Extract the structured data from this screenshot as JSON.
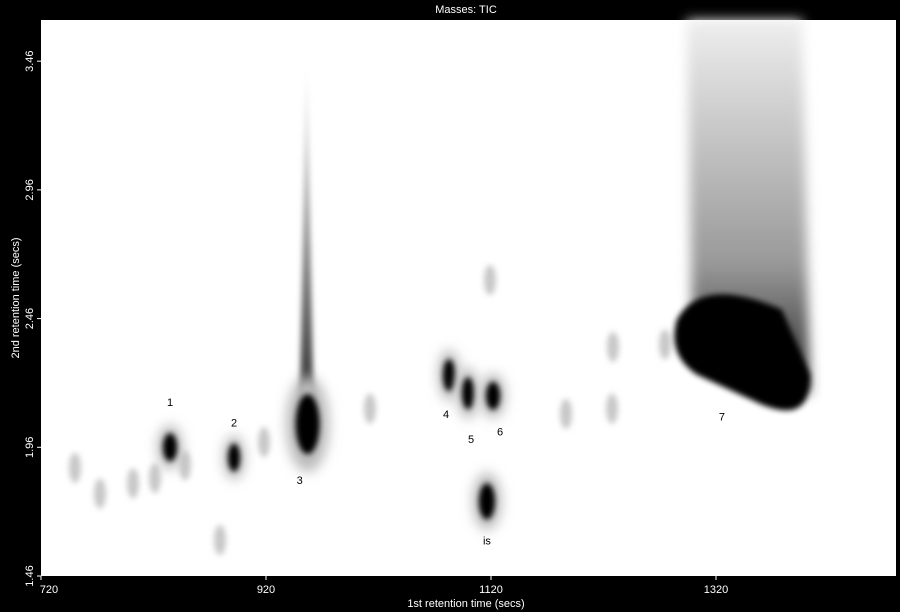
{
  "chart_data": {
    "type": "contour",
    "title": "Masses:  TIC",
    "xlabel": "1st retention time (secs)",
    "ylabel": "2nd retention time (secs)",
    "xlim": [
      720,
      1480
    ],
    "ylim": [
      1.46,
      3.62
    ],
    "xticks": [
      720,
      920,
      1120,
      1320
    ],
    "yticks": [
      1.46,
      1.96,
      2.46,
      2.96,
      3.46
    ],
    "peaks": [
      {
        "label": "1",
        "x": 834.7,
        "y": 1.96
      },
      {
        "label": "2",
        "x": 891.6,
        "y": 1.92
      },
      {
        "label": "3",
        "x": 957,
        "y": 2.05
      },
      {
        "label": "4",
        "x": 1082.7,
        "y": 2.24
      },
      {
        "label": "5",
        "x": 1099.6,
        "y": 2.17
      },
      {
        "label": "6",
        "x": 1121.8,
        "y": 2.16
      },
      {
        "label": "is",
        "x": 1116.4,
        "y": 1.75
      },
      {
        "label": "7",
        "x": 1343,
        "y": 2.32
      }
    ],
    "spots": [
      {
        "x": 750.2,
        "y": 1.88
      },
      {
        "x": 772.4,
        "y": 1.78
      },
      {
        "x": 801.8,
        "y": 1.82
      },
      {
        "x": 821.3,
        "y": 1.84
      },
      {
        "x": 848,
        "y": 1.89
      },
      {
        "x": 879.1,
        "y": 1.6
      },
      {
        "x": 918.2,
        "y": 1.98
      },
      {
        "x": 1012.4,
        "y": 2.11
      },
      {
        "x": 1119.1,
        "y": 2.61
      },
      {
        "x": 1186.7,
        "y": 2.09
      },
      {
        "x": 1227.6,
        "y": 2.11
      },
      {
        "x": 1228.4,
        "y": 2.35
      },
      {
        "x": 1274.7,
        "y": 2.36
      }
    ]
  }
}
